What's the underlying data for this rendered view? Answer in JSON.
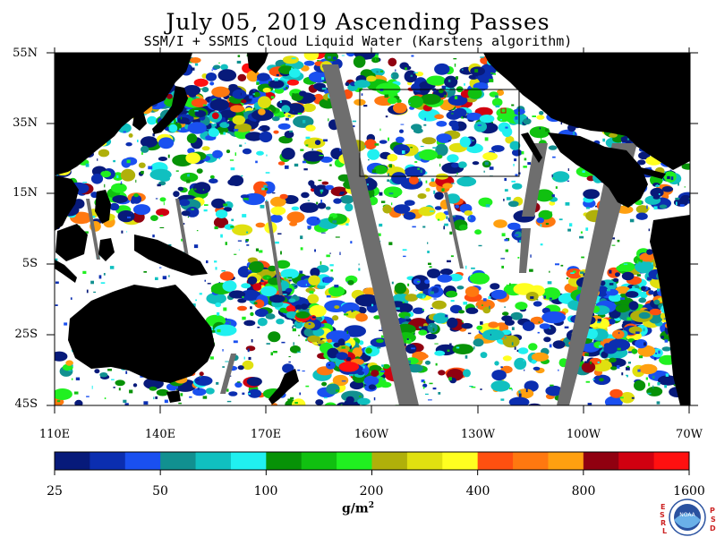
{
  "title": "July 05, 2019  Ascending Passes",
  "subtitle": "SSM/I + SSMIS Cloud Liquid Water (Karstens algorithm)",
  "lat_labels": [
    "55N",
    "35N",
    "15N",
    "5S",
    "25S",
    "45S"
  ],
  "lon_labels": [
    "110E",
    "140E",
    "170E",
    "160W",
    "130W",
    "100W",
    "70W"
  ],
  "colorbar": {
    "tick_labels": [
      "25",
      "50",
      "100",
      "200",
      "400",
      "800",
      "1600"
    ],
    "unit": "g/m",
    "unit_sup": "2",
    "colors": [
      "#071a7a",
      "#0b2eb0",
      "#1a50f0",
      "#119090",
      "#10c0c0",
      "#20f0f0",
      "#079207",
      "#10c010",
      "#20f020",
      "#b0b00a",
      "#e0e010",
      "#ffff20",
      "#ff5010",
      "#ff7810",
      "#ffa010",
      "#900010",
      "#d00010",
      "#ff1010"
    ]
  },
  "map": {
    "land_color": "#000000",
    "gap_color": "#6e6e6e",
    "ocean_color": "#ffffff"
  },
  "logo": {
    "name": "NOAA",
    "left_letters": [
      "E",
      "S",
      "R",
      "L"
    ],
    "right_letters": [
      "P",
      "S",
      "D"
    ]
  }
}
